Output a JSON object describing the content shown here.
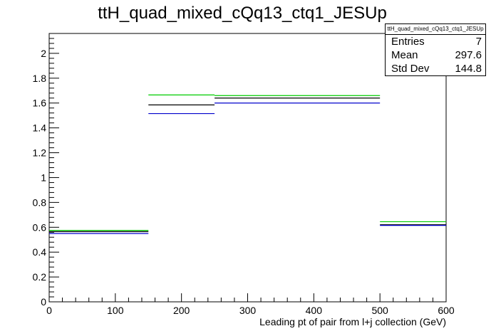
{
  "chart_data": {
    "type": "histogram",
    "title": "ttH_quad_mixed_cQq13_ctq1_JESUp",
    "xlabel": "Leading pt of pair from l+j collection (GeV)",
    "ylabel": "",
    "xlim": [
      0,
      600
    ],
    "ylim": [
      0,
      2.16
    ],
    "x_ticks": [
      0,
      100,
      200,
      300,
      400,
      500,
      600
    ],
    "y_ticks": [
      0,
      0.2,
      0.4,
      0.6,
      0.8,
      1,
      1.2,
      1.4,
      1.6,
      1.8,
      2
    ],
    "y_tick_labels": [
      "0",
      "0.2",
      "0.4",
      "0.6",
      "0.8",
      "1",
      "1.2",
      "1.4",
      "1.6",
      "1.8",
      "2"
    ],
    "bin_edges": [
      0,
      150,
      250,
      500,
      600
    ],
    "series": [
      {
        "color": "#00cc00",
        "values": [
          0.575,
          1.665,
          1.66,
          0.645
        ]
      },
      {
        "color": "#000000",
        "values": [
          0.565,
          1.585,
          1.64,
          0.62
        ]
      },
      {
        "color": "#0000cc",
        "values": [
          0.55,
          1.515,
          1.6,
          0.615
        ]
      }
    ],
    "stats": {
      "name": "ttH_quad_mixed_cQq13_ctq1_JESUp",
      "entries_label": "Entries",
      "entries": "7",
      "mean_label": "Mean",
      "mean": "297.6",
      "stddev_label": "Std Dev",
      "stddev": "144.8"
    }
  }
}
